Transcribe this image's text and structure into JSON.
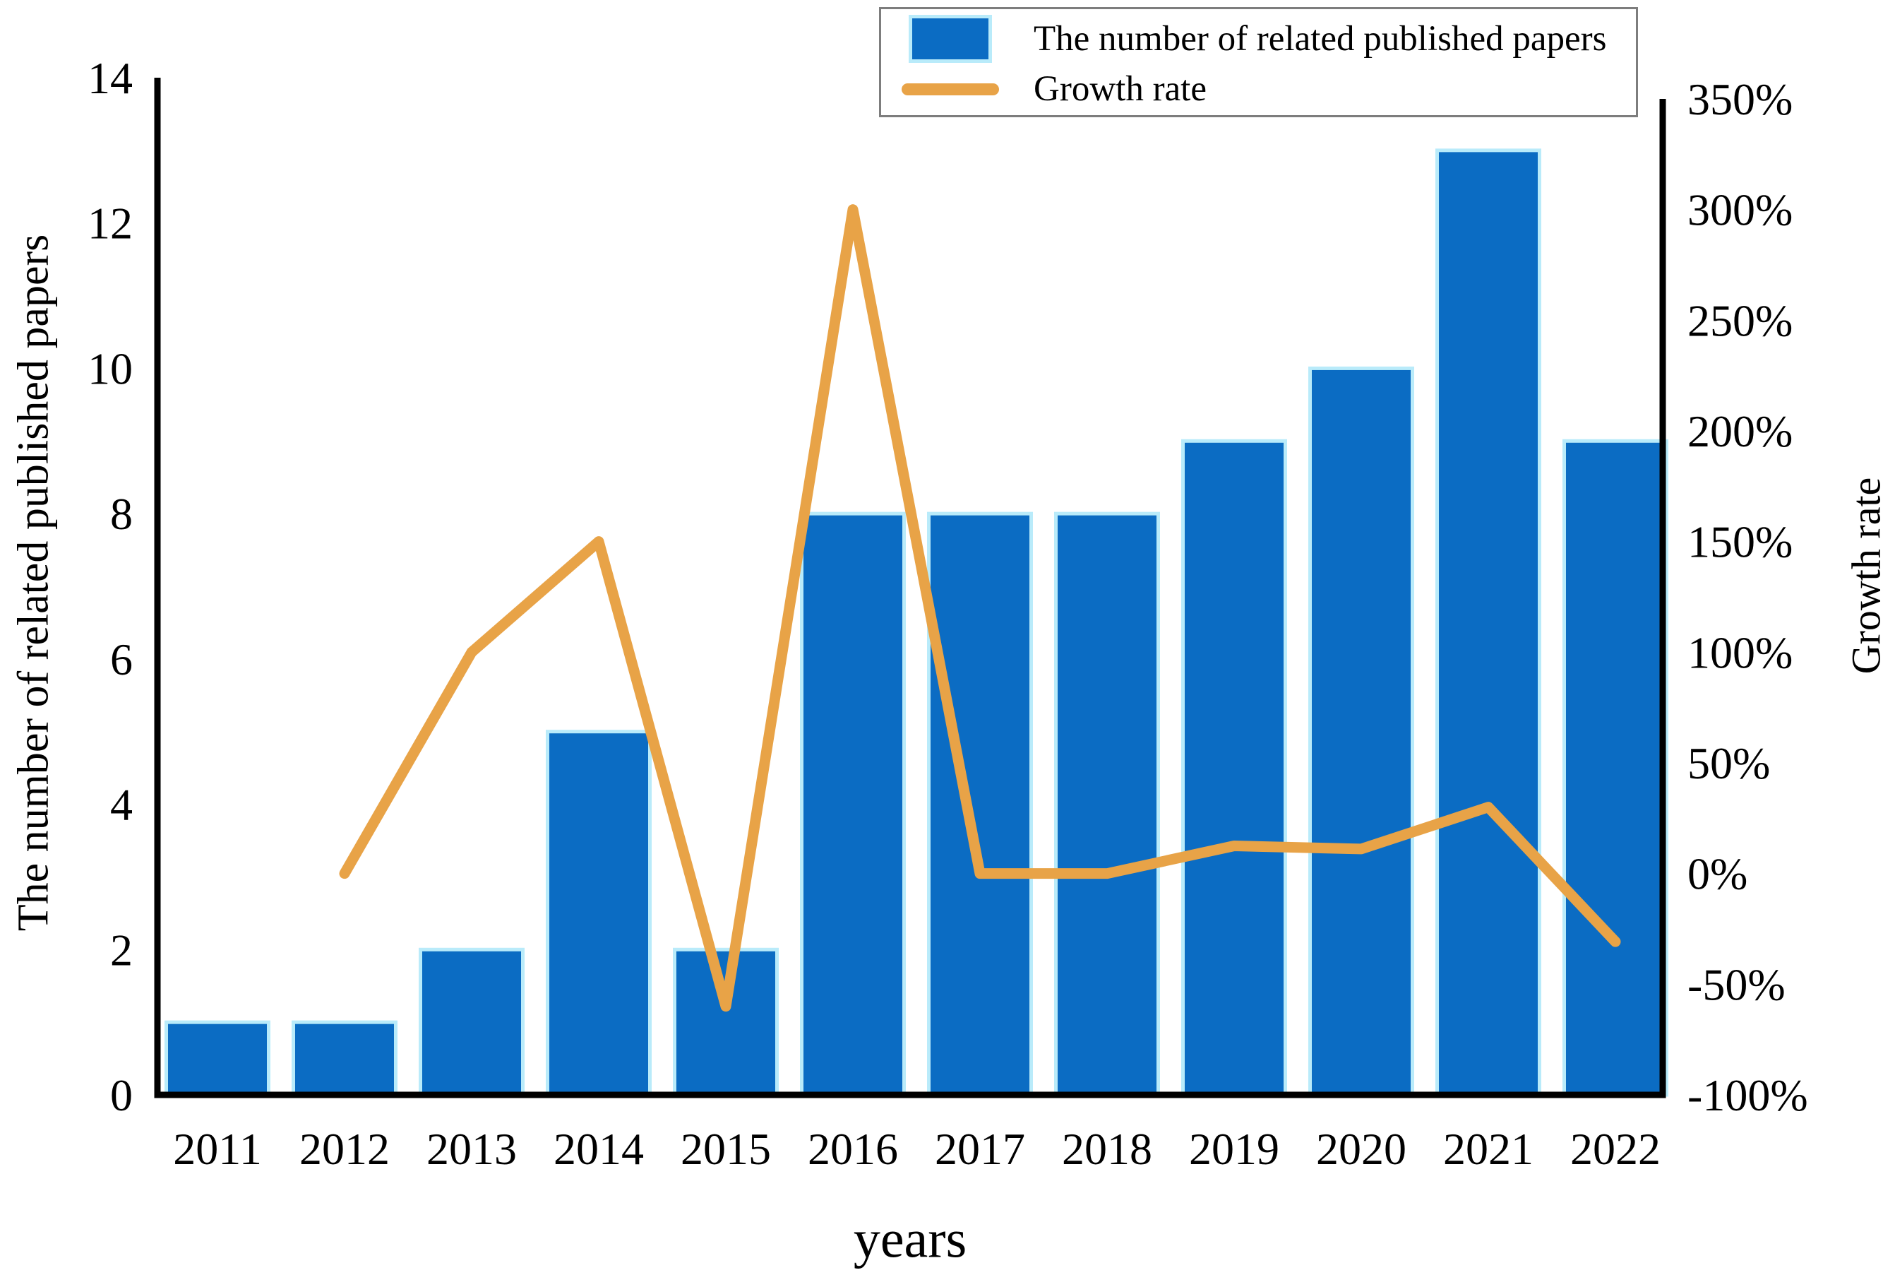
{
  "figure": {
    "background": "#ffffff"
  },
  "legend": {
    "items": [
      {
        "label": "The number of related published papers",
        "swatch": "bar"
      },
      {
        "label": "Growth rate",
        "swatch": "line"
      }
    ]
  },
  "labels": {
    "left_axis_title": "The number of related published papers",
    "right_axis_title": "Growth rate",
    "x_axis_title": "years"
  },
  "colors": {
    "bar": "#0b6cc3",
    "bar_edge": "#b9ebfa",
    "line": "#e8a347",
    "axis": "#000000",
    "text": "#000000",
    "legend_border": "#7d7d7d",
    "background": "#ffffff"
  },
  "chart_data": {
    "type": "bar+line combo, dual y-axis",
    "title": "",
    "categories": [
      "2011",
      "2012",
      "2013",
      "2014",
      "2015",
      "2016",
      "2017",
      "2018",
      "2019",
      "2020",
      "2021",
      "2022"
    ],
    "series": [
      {
        "name": "The number of related published papers",
        "type": "bar",
        "axis": "left",
        "values": [
          1,
          1,
          2,
          5,
          2,
          8,
          8,
          8,
          9,
          10,
          13,
          9
        ],
        "color": "#0b6cc3",
        "edge_color": "#b9ebfa"
      },
      {
        "name": "Growth rate",
        "type": "line",
        "axis": "right",
        "unit": "%",
        "values": [
          null,
          0,
          100,
          150,
          -60,
          300,
          0,
          0,
          12.5,
          11.1,
          30,
          -30.8
        ],
        "color": "#e8a347"
      }
    ],
    "left_axis": {
      "title": "The number of related published papers",
      "min": 0,
      "max": 14,
      "ticks": [
        0,
        2,
        4,
        6,
        8,
        10,
        12,
        14
      ]
    },
    "right_axis": {
      "title": "Growth rate",
      "min": -100,
      "max": 350,
      "ticks": [
        -100,
        -50,
        0,
        50,
        100,
        150,
        200,
        250,
        300,
        350
      ],
      "tick_format": "percent"
    },
    "x_axis": {
      "title": "years"
    },
    "grid": false,
    "legend_position": "top-right"
  }
}
